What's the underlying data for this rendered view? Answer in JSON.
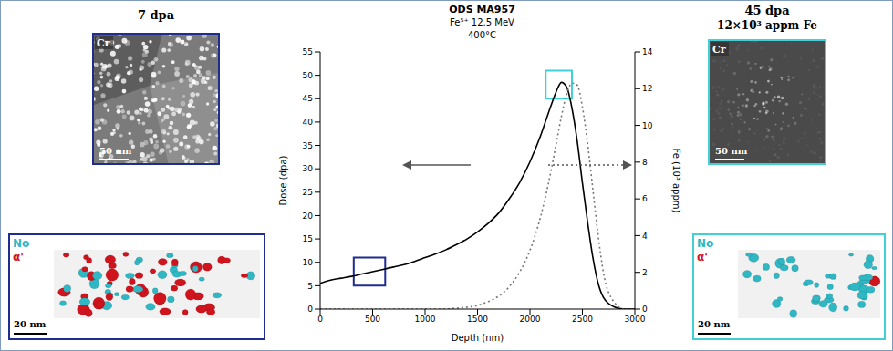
{
  "chart_data": {
    "type": "line",
    "title": "ODS MA957",
    "subtitle": [
      "Fe⁵⁺ 12.5 MeV",
      "400°C"
    ],
    "x_label": "Depth (nm)",
    "y_label": "Dose (dpa)",
    "y2_label": "Fe (10³ appm)",
    "x": [
      0,
      100,
      200,
      300,
      400,
      500,
      600,
      700,
      800,
      900,
      1000,
      1100,
      1200,
      1300,
      1400,
      1500,
      1600,
      1700,
      1800,
      1900,
      2000,
      2100,
      2200,
      2250,
      2300,
      2350,
      2400,
      2450,
      2500,
      2550,
      2600,
      2650,
      2700,
      2800,
      2900,
      3000
    ],
    "series": [
      {
        "color": "#000000",
        "line_style": "solid",
        "values": [
          5.5,
          6.2,
          6.6,
          7.0,
          7.5,
          8.0,
          8.5,
          9.0,
          9.5,
          10.2,
          11.0,
          11.8,
          12.7,
          13.8,
          15.0,
          16.5,
          18.3,
          20.5,
          23.5,
          27.0,
          31.5,
          37.0,
          43.5,
          46.5,
          48.5,
          47.5,
          43.0,
          36.0,
          27.0,
          18.5,
          11.0,
          5.5,
          2.5,
          0.5,
          0,
          0
        ]
      },
      {
        "color": "#777777",
        "line_style": "dotted",
        "axis": "y2",
        "values": [
          0,
          0,
          0,
          0,
          0,
          0,
          0,
          0,
          0,
          0,
          0,
          0,
          0,
          0.05,
          0.1,
          0.2,
          0.4,
          0.7,
          1.2,
          2.0,
          3.2,
          5.0,
          7.5,
          9.0,
          10.5,
          11.7,
          12.3,
          12.2,
          11.0,
          9.0,
          6.5,
          4.0,
          2.0,
          0.4,
          0,
          0
        ]
      }
    ],
    "xlim": [
      0,
      3000
    ],
    "xticks": [
      0,
      500,
      1000,
      1500,
      2000,
      2500,
      3000
    ],
    "ylim": [
      0,
      55
    ],
    "yticks": [
      0,
      5,
      10,
      15,
      20,
      25,
      30,
      35,
      40,
      45,
      50,
      55
    ],
    "y2lim": [
      0,
      14
    ],
    "y2ticks": [
      0,
      2,
      4,
      6,
      8,
      10,
      12,
      14
    ],
    "highlights": [
      {
        "x": [
          320,
          620
        ],
        "y": [
          5,
          11
        ],
        "color": "#1f2d8f"
      },
      {
        "x": [
          2150,
          2400
        ],
        "y": [
          45,
          51
        ],
        "color": "#3fd0d8"
      }
    ]
  },
  "panels": [
    {
      "title": "7 dpa",
      "frame_color": "#1f2d8f",
      "tem": {
        "element": "Cr",
        "scale_bar": "50 nm"
      },
      "apt": {
        "labels": [
          {
            "text": "No",
            "color": "#2fb8c4"
          },
          {
            "text": "α'",
            "color": "#d0141e"
          }
        ],
        "scale_bar": "20 nm"
      }
    },
    {
      "title": "45 dpa",
      "subtitle": "12×10³ appm Fe",
      "frame_color": "#3fd0d8",
      "tem": {
        "element": "Cr",
        "scale_bar": "50 nm"
      },
      "apt": {
        "labels": [
          {
            "text": "No",
            "color": "#2fb8c4"
          },
          {
            "text": "α'",
            "color": "#d0141e"
          }
        ],
        "scale_bar": "20 nm"
      }
    }
  ]
}
